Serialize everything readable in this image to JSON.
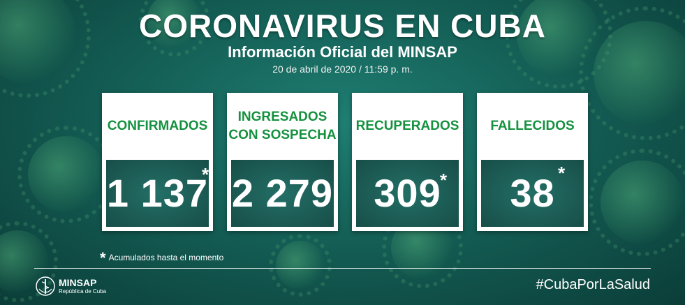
{
  "header": {
    "title": "CORONAVIRUS EN CUBA",
    "subtitle": "Información Oficial del MINSAP",
    "date": "20 de abril de 2020 / 11:59 p. m."
  },
  "cards": [
    {
      "label": "CONFIRMADOS",
      "value": "1 137",
      "asterisk": "*"
    },
    {
      "label": "INGRESADOS\nCON SOSPECHA",
      "value": "2 279",
      "asterisk": ""
    },
    {
      "label": "RECUPERADOS",
      "value": "309",
      "asterisk": "*"
    },
    {
      "label": "FALLECIDOS",
      "value": "38",
      "asterisk": "*"
    }
  ],
  "footnote": {
    "symbol": "*",
    "text": "Acumulados hasta el momento"
  },
  "footer": {
    "logo_name": "MINSAP",
    "logo_sub": "República de Cuba",
    "hashtag": "#CubaPorLaSalud"
  },
  "colors": {
    "label_green": "#15913f",
    "value_box": "#174e48",
    "background": "#145f56"
  }
}
